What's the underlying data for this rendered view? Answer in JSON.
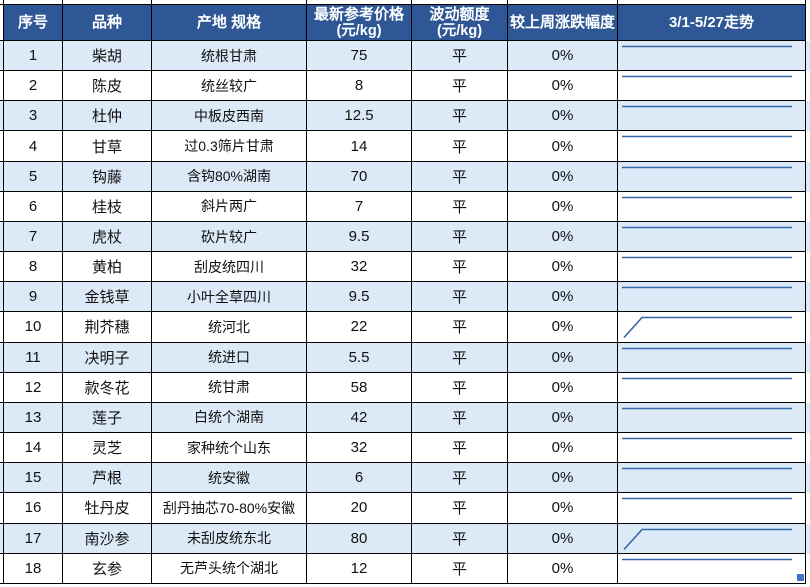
{
  "table": {
    "headers": {
      "no": "序号",
      "variety": "品种",
      "origin_spec": "产地 规格",
      "price_line1": "最新参考价格",
      "price_line2": "(元/kg)",
      "fluct_line1": "波动额度",
      "fluct_line2": "(元/kg)",
      "change": "较上周涨跌幅度",
      "trend": "3/1-5/27走势"
    },
    "rows": [
      {
        "no": "1",
        "variety": "柴胡",
        "origin_spec": "统根甘肃",
        "price": "75",
        "fluctuation": "平",
        "change": "0%",
        "trend": "flat"
      },
      {
        "no": "2",
        "variety": "陈皮",
        "origin_spec": "统丝较广",
        "price": "8",
        "fluctuation": "平",
        "change": "0%",
        "trend": "flat"
      },
      {
        "no": "3",
        "variety": "杜仲",
        "origin_spec": "中板皮西南",
        "price": "12.5",
        "fluctuation": "平",
        "change": "0%",
        "trend": "flat"
      },
      {
        "no": "4",
        "variety": "甘草",
        "origin_spec": "过0.3筛片甘肃",
        "price": "14",
        "fluctuation": "平",
        "change": "0%",
        "trend": "flat"
      },
      {
        "no": "5",
        "variety": "钩藤",
        "origin_spec": "含钩80%湖南",
        "price": "70",
        "fluctuation": "平",
        "change": "0%",
        "trend": "flat"
      },
      {
        "no": "6",
        "variety": "桂枝",
        "origin_spec": "斜片两广",
        "price": "7",
        "fluctuation": "平",
        "change": "0%",
        "trend": "flat"
      },
      {
        "no": "7",
        "variety": "虎杖",
        "origin_spec": "砍片较广",
        "price": "9.5",
        "fluctuation": "平",
        "change": "0%",
        "trend": "flat"
      },
      {
        "no": "8",
        "variety": "黄柏",
        "origin_spec": "刮皮统四川",
        "price": "32",
        "fluctuation": "平",
        "change": "0%",
        "trend": "flat"
      },
      {
        "no": "9",
        "variety": "金钱草",
        "origin_spec": "小叶全草四川",
        "price": "9.5",
        "fluctuation": "平",
        "change": "0%",
        "trend": "flat"
      },
      {
        "no": "10",
        "variety": "荆芥穗",
        "origin_spec": "统河北",
        "price": "22",
        "fluctuation": "平",
        "change": "0%",
        "trend": "rise"
      },
      {
        "no": "11",
        "variety": "决明子",
        "origin_spec": "统进口",
        "price": "5.5",
        "fluctuation": "平",
        "change": "0%",
        "trend": "flat"
      },
      {
        "no": "12",
        "variety": "款冬花",
        "origin_spec": "统甘肃",
        "price": "58",
        "fluctuation": "平",
        "change": "0%",
        "trend": "flat"
      },
      {
        "no": "13",
        "variety": "莲子",
        "origin_spec": "白统个湖南",
        "price": "42",
        "fluctuation": "平",
        "change": "0%",
        "trend": "flat"
      },
      {
        "no": "14",
        "variety": "灵芝",
        "origin_spec": "家种统个山东",
        "price": "32",
        "fluctuation": "平",
        "change": "0%",
        "trend": "flat"
      },
      {
        "no": "15",
        "variety": "芦根",
        "origin_spec": "统安徽",
        "price": "6",
        "fluctuation": "平",
        "change": "0%",
        "trend": "flat"
      },
      {
        "no": "16",
        "variety": "牡丹皮",
        "origin_spec": "刮丹抽芯70-80%安徽",
        "price": "20",
        "fluctuation": "平",
        "change": "0%",
        "trend": "flat"
      },
      {
        "no": "17",
        "variety": "南沙参",
        "origin_spec": "未刮皮统东北",
        "price": "80",
        "fluctuation": "平",
        "change": "0%",
        "trend": "rise"
      },
      {
        "no": "18",
        "variety": "玄参",
        "origin_spec": "无芦头统个湖北",
        "price": "12",
        "fluctuation": "平",
        "change": "0%",
        "trend": "flat",
        "has_handle": true
      }
    ]
  },
  "colors": {
    "header_bg": "#2F5796",
    "band_bg": "#DCE9F6",
    "border": "#000000",
    "sparkline": "#3665A9",
    "fill_handle": "#4472C4"
  }
}
